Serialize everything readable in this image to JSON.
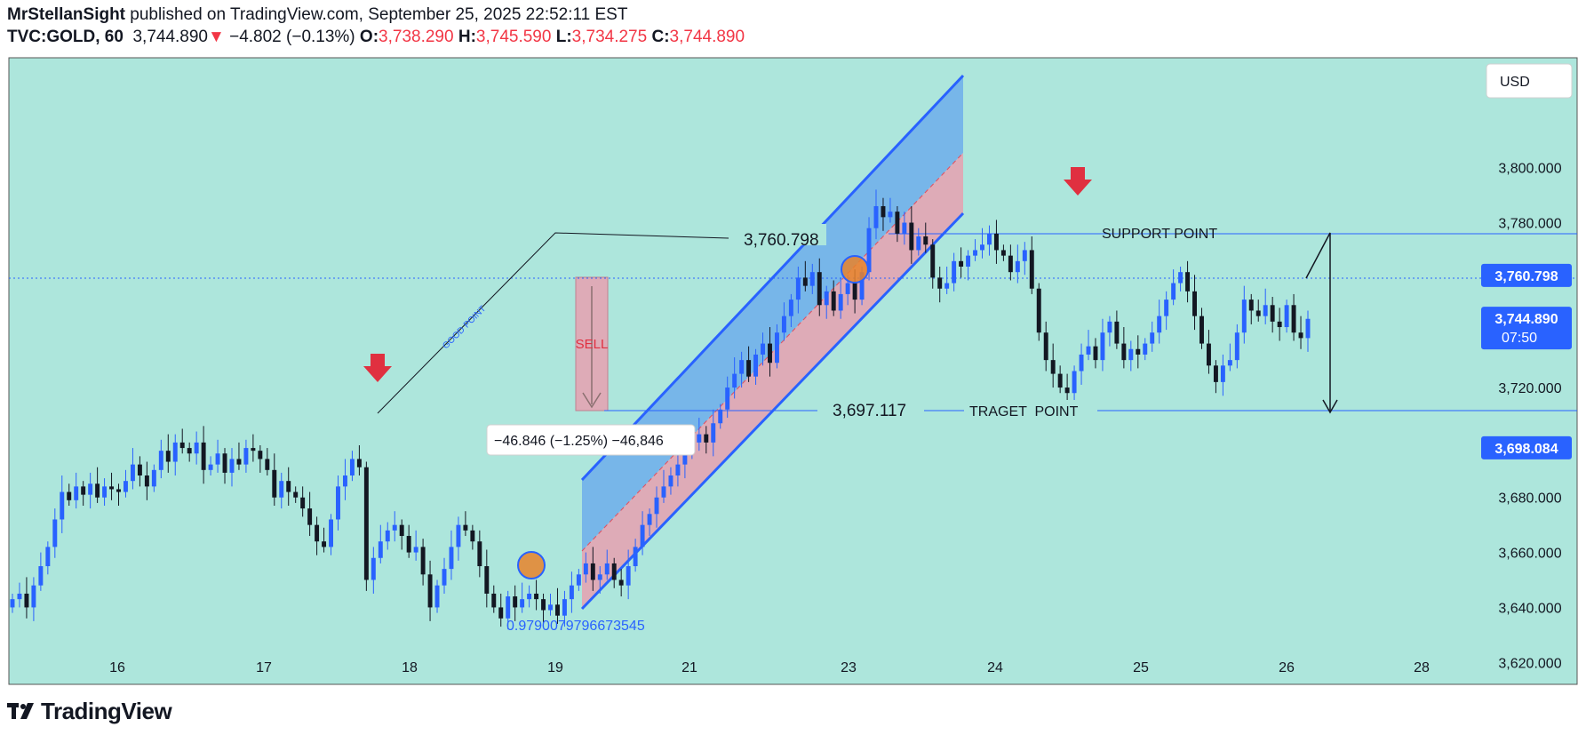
{
  "header": {
    "publisher": "MrStellanSight",
    "published_text": "published on TradingView.com, September 25, 2025 22:52:11 EST",
    "symbol": "TVC:GOLD, 60",
    "last": "3,744.890",
    "change_arrow": "▼",
    "change": "−4.802 (−0.13%)",
    "o_label": "O:",
    "o_value": "3,738.290",
    "h_label": "H:",
    "h_value": "3,745.590",
    "l_label": "L:",
    "l_value": "3,734.275",
    "c_label": "C:",
    "c_value": "3,744.890"
  },
  "footer": {
    "brand": "TradingView"
  },
  "colors": {
    "background": "#ade6dc",
    "up": "#2962ff",
    "down": "#131722",
    "channel_blue": "#2962ff",
    "channel_fill": "#5b9cf0",
    "sell_zone": "#e6a0b0",
    "arrow_red": "#e03040",
    "price_tag": "#2962ff"
  },
  "chart_data": {
    "type": "candlestick",
    "currency": "USD",
    "ylim": [
      3612,
      3840
    ],
    "y_ticks": [
      "3,800.000",
      "3,780.000",
      "3,720.000",
      "3,680.000",
      "3,660.000",
      "3,640.000",
      "3,620.000"
    ],
    "x_ticks": [
      "16",
      "17",
      "18",
      "19",
      "21",
      "23",
      "24",
      "25",
      "26",
      "28"
    ],
    "price_tags": [
      {
        "label": "3,760.798",
        "value": 3760.8
      },
      {
        "label": "3,744.890",
        "sub": "07:50",
        "value": 3744.89
      },
      {
        "label": "3,698.084",
        "value": 3698.08
      }
    ],
    "annotations": {
      "level_high": "3,760.798",
      "level_low": "3,697.117",
      "support": "SUPPORT POINT",
      "target": "TRAGET  POINT",
      "sell": "SELL",
      "good_point": "GOOD POINT",
      "measure": "−46.846 (−1.25%) −46,846",
      "fib": "0.9790079796673545"
    },
    "closes": [
      3643,
      3645,
      3640,
      3648,
      3655,
      3662,
      3672,
      3682,
      3679,
      3684,
      3681,
      3685,
      3680,
      3684,
      3683,
      3682,
      3686,
      3692,
      3688,
      3684,
      3690,
      3697,
      3693,
      3700,
      3698,
      3696,
      3700,
      3690,
      3692,
      3696,
      3689,
      3694,
      3692,
      3698,
      3697,
      3694,
      3690,
      3680,
      3686,
      3682,
      3680,
      3676,
      3670,
      3664,
      3662,
      3672,
      3684,
      3688,
      3694,
      3691,
      3650,
      3658,
      3664,
      3668,
      3670,
      3666,
      3660,
      3662,
      3652,
      3640,
      3648,
      3654,
      3662,
      3670,
      3668,
      3664,
      3655,
      3645,
      3640,
      3636,
      3644,
      3640,
      3643,
      3645,
      3643,
      3639,
      3641,
      3637,
      3643,
      3648,
      3652,
      3656,
      3650,
      3652,
      3656,
      3650,
      3648,
      3655,
      3662,
      3670,
      3674,
      3680,
      3684,
      3688,
      3692,
      3696,
      3700,
      3703,
      3700,
      3707,
      3712,
      3720,
      3725,
      3730,
      3724,
      3732,
      3736,
      3729,
      3740,
      3746,
      3752,
      3760,
      3757,
      3762,
      3750,
      3755,
      3748,
      3754,
      3758,
      3752,
      3762,
      3778,
      3786,
      3782,
      3784,
      3776,
      3780,
      3770,
      3775,
      3772,
      3760,
      3756,
      3758,
      3766,
      3764,
      3768,
      3770,
      3772,
      3776,
      3770,
      3768,
      3762,
      3766,
      3770,
      3756,
      3740,
      3730,
      3725,
      3720,
      3718,
      3726,
      3732,
      3735,
      3730,
      3740,
      3744,
      3736,
      3730,
      3734,
      3732,
      3736,
      3740,
      3746,
      3752,
      3758,
      3762,
      3755,
      3746,
      3736,
      3728,
      3722,
      3728,
      3730,
      3740,
      3752,
      3748,
      3746,
      3750,
      3744,
      3742,
      3750,
      3740,
      3738,
      3745
    ]
  }
}
